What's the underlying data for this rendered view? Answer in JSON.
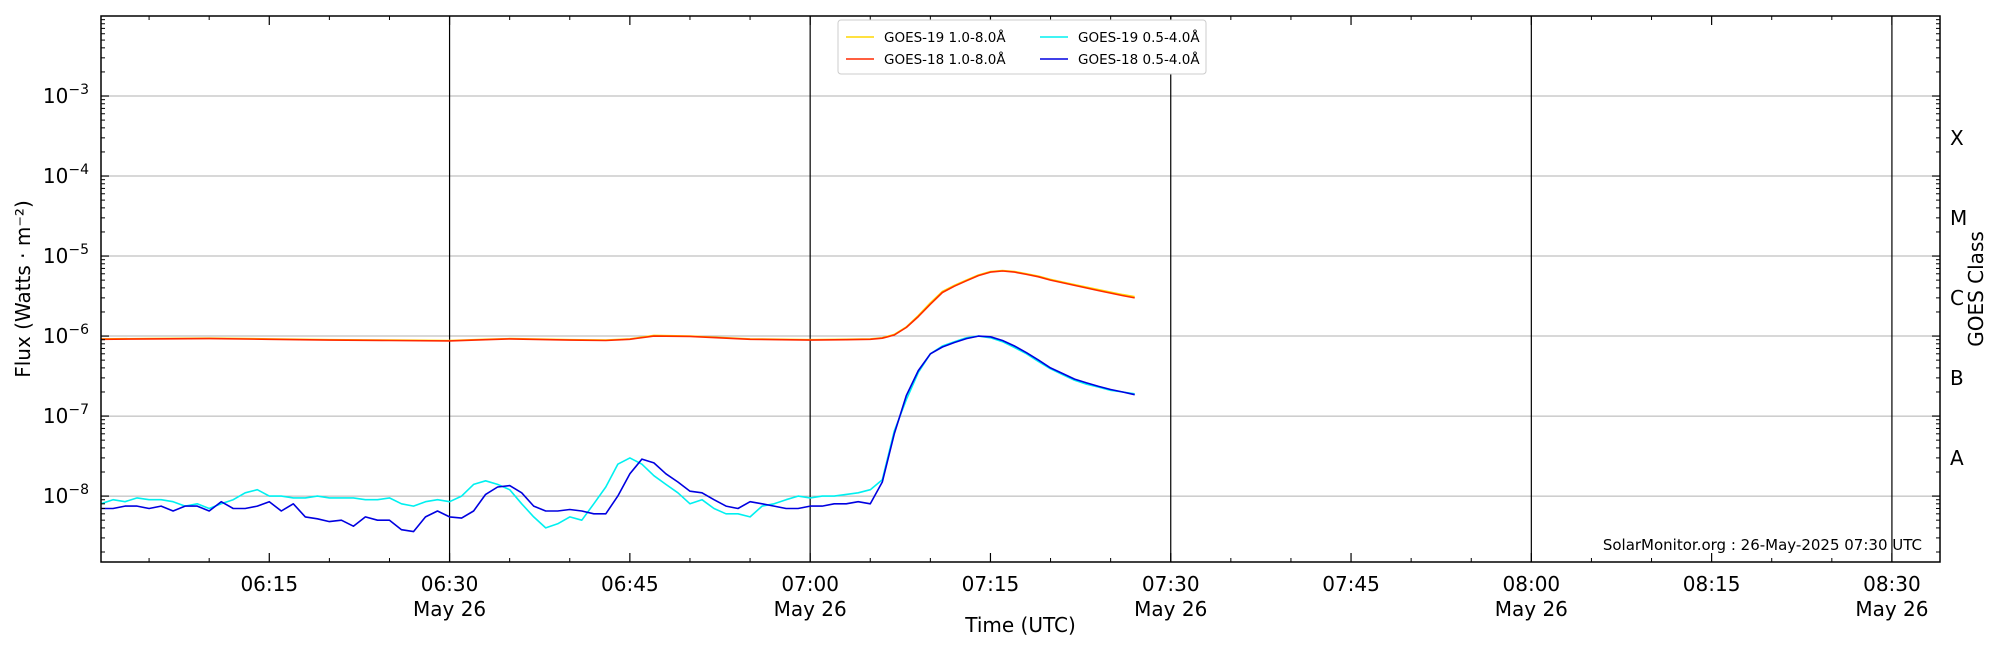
{
  "chart_data": {
    "type": "line",
    "title": "",
    "xlabel": "Time (UTC)",
    "ylabel": "Flux (Watts · m⁻²)",
    "y2label": "GOES Class",
    "yscale": "log",
    "ylim": [
      1.5e-09,
      0.01
    ],
    "xlim": [
      "2025-05-26 06:01",
      "2025-05-26 08:34"
    ],
    "grid": "horizontal at decades",
    "legend_position": "top-center",
    "watermark": "SolarMonitor.org : 26-May-2025 07:30 UTC",
    "x_ticks": [
      {
        "time": "06:15",
        "date": ""
      },
      {
        "time": "06:30",
        "date": "May 26"
      },
      {
        "time": "06:45",
        "date": ""
      },
      {
        "time": "07:00",
        "date": "May 26"
      },
      {
        "time": "07:15",
        "date": ""
      },
      {
        "time": "07:30",
        "date": "May 26"
      },
      {
        "time": "07:45",
        "date": ""
      },
      {
        "time": "08:00",
        "date": "May 26"
      },
      {
        "time": "08:15",
        "date": ""
      },
      {
        "time": "08:30",
        "date": "May 26"
      }
    ],
    "y_ticks": [
      {
        "value": 1e-08,
        "base": "10",
        "exp": "−8"
      },
      {
        "value": 1e-07,
        "base": "10",
        "exp": "−7"
      },
      {
        "value": 1e-06,
        "base": "10",
        "exp": "−6"
      },
      {
        "value": 1e-05,
        "base": "10",
        "exp": "−5"
      },
      {
        "value": 0.0001,
        "base": "10",
        "exp": "−4"
      },
      {
        "value": 0.001,
        "base": "10",
        "exp": "−3"
      }
    ],
    "goes_classes": [
      {
        "label": "A",
        "value": 3e-08
      },
      {
        "label": "B",
        "value": 3e-07
      },
      {
        "label": "C",
        "value": 3e-06
      },
      {
        "label": "M",
        "value": 3e-05
      },
      {
        "label": "X",
        "value": 0.0003
      }
    ],
    "vertical_lines": [
      "06:30",
      "07:00",
      "07:30",
      "08:00",
      "08:30"
    ],
    "series": [
      {
        "name": "GOES-19 1.0-8.0Å",
        "color": "#ffd700",
        "x": [
          "06:01",
          "06:05",
          "06:10",
          "06:15",
          "06:20",
          "06:25",
          "06:30",
          "06:33",
          "06:35",
          "06:40",
          "06:43",
          "06:45",
          "06:47",
          "06:50",
          "06:55",
          "07:00",
          "07:03",
          "07:05",
          "07:06",
          "07:07",
          "07:08",
          "07:09",
          "07:10",
          "07:11",
          "07:12",
          "07:13",
          "07:14",
          "07:15",
          "07:16",
          "07:17",
          "07:18",
          "07:19",
          "07:20",
          "07:22",
          "07:24",
          "07:26",
          "07:27"
        ],
        "values": [
          9.2e-07,
          9.3e-07,
          9.4e-07,
          9.2e-07,
          9e-07,
          8.9e-07,
          8.8e-07,
          9.1e-07,
          9.3e-07,
          9e-07,
          8.9e-07,
          9.2e-07,
          1.02e-06,
          1e-06,
          9.2e-07,
          9e-07,
          9.1e-07,
          9.2e-07,
          9.5e-07,
          1.05e-06,
          1.3e-06,
          1.8e-06,
          2.6e-06,
          3.6e-06,
          4.3e-06,
          5e-06,
          5.8e-06,
          6.4e-06,
          6.6e-06,
          6.4e-06,
          6e-06,
          5.6e-06,
          5.1e-06,
          4.4e-06,
          3.8e-06,
          3.3e-06,
          3.1e-06
        ]
      },
      {
        "name": "GOES-18 1.0-8.0Å",
        "color": "#ff2a00",
        "x": [
          "06:01",
          "06:05",
          "06:10",
          "06:15",
          "06:20",
          "06:25",
          "06:30",
          "06:33",
          "06:35",
          "06:40",
          "06:43",
          "06:45",
          "06:47",
          "06:50",
          "06:55",
          "07:00",
          "07:03",
          "07:05",
          "07:06",
          "07:07",
          "07:08",
          "07:09",
          "07:10",
          "07:11",
          "07:12",
          "07:13",
          "07:14",
          "07:15",
          "07:16",
          "07:17",
          "07:18",
          "07:19",
          "07:20",
          "07:22",
          "07:24",
          "07:26",
          "07:27"
        ],
        "values": [
          9.1e-07,
          9.2e-07,
          9.3e-07,
          9.1e-07,
          8.9e-07,
          8.8e-07,
          8.7e-07,
          9e-07,
          9.2e-07,
          8.9e-07,
          8.8e-07,
          9.1e-07,
          1e-06,
          9.9e-07,
          9.1e-07,
          8.9e-07,
          9e-07,
          9.1e-07,
          9.4e-07,
          1.03e-06,
          1.28e-06,
          1.75e-06,
          2.5e-06,
          3.5e-06,
          4.2e-06,
          4.9e-06,
          5.7e-06,
          6.3e-06,
          6.5e-06,
          6.3e-06,
          5.9e-06,
          5.5e-06,
          5e-06,
          4.3e-06,
          3.7e-06,
          3.2e-06,
          3e-06
        ]
      },
      {
        "name": "GOES-19 0.5-4.0Å",
        "color": "#00f0f0",
        "x": [
          "06:01",
          "06:02",
          "06:03",
          "06:04",
          "06:05",
          "06:06",
          "06:07",
          "06:08",
          "06:09",
          "06:10",
          "06:11",
          "06:12",
          "06:13",
          "06:14",
          "06:15",
          "06:16",
          "06:17",
          "06:18",
          "06:19",
          "06:20",
          "06:21",
          "06:22",
          "06:23",
          "06:24",
          "06:25",
          "06:26",
          "06:27",
          "06:28",
          "06:29",
          "06:30",
          "06:31",
          "06:32",
          "06:33",
          "06:34",
          "06:35",
          "06:36",
          "06:37",
          "06:38",
          "06:39",
          "06:40",
          "06:41",
          "06:42",
          "06:43",
          "06:44",
          "06:45",
          "06:46",
          "06:47",
          "06:48",
          "06:49",
          "06:50",
          "06:51",
          "06:52",
          "06:53",
          "06:54",
          "06:55",
          "06:56",
          "06:57",
          "06:58",
          "06:59",
          "07:00",
          "07:01",
          "07:02",
          "07:03",
          "07:04",
          "07:05",
          "07:06",
          "07:07",
          "07:08",
          "07:09",
          "07:10",
          "07:11",
          "07:12",
          "07:13",
          "07:14",
          "07:15",
          "07:16",
          "07:17",
          "07:18",
          "07:19",
          "07:20",
          "07:21",
          "07:22",
          "07:23",
          "07:24",
          "07:25",
          "07:26",
          "07:27"
        ],
        "values": [
          8e-09,
          9e-09,
          8.5e-09,
          9.5e-09,
          9e-09,
          9e-09,
          8.5e-09,
          7.5e-09,
          8e-09,
          7e-09,
          8e-09,
          9e-09,
          1.1e-08,
          1.2e-08,
          1e-08,
          1e-08,
          9.5e-09,
          9.5e-09,
          1e-08,
          9.5e-09,
          9.5e-09,
          9.5e-09,
          9e-09,
          9e-09,
          9.5e-09,
          8e-09,
          7.5e-09,
          8.5e-09,
          9e-09,
          8.5e-09,
          1e-08,
          1.4e-08,
          1.55e-08,
          1.4e-08,
          1.2e-08,
          8e-09,
          5.5e-09,
          4e-09,
          4.5e-09,
          5.5e-09,
          5e-09,
          8e-09,
          1.3e-08,
          2.5e-08,
          3e-08,
          2.5e-08,
          1.8e-08,
          1.4e-08,
          1.1e-08,
          8e-09,
          9e-09,
          7e-09,
          6e-09,
          6e-09,
          5.5e-09,
          7.5e-09,
          8e-09,
          9e-09,
          1e-08,
          9.5e-09,
          1e-08,
          1e-08,
          1.05e-08,
          1.1e-08,
          1.2e-08,
          1.6e-08,
          6.5e-08,
          1.6e-07,
          3.5e-07,
          6e-07,
          7.5e-07,
          8.5e-07,
          9.5e-07,
          1e-06,
          9.5e-07,
          8.5e-07,
          7.2e-07,
          6e-07,
          4.8e-07,
          3.9e-07,
          3.3e-07,
          2.8e-07,
          2.5e-07,
          2.3e-07,
          2.1e-07,
          2e-07,
          1.9e-07
        ]
      },
      {
        "name": "GOES-18 0.5-4.0Å",
        "color": "#0000e0",
        "x": [
          "06:01",
          "06:02",
          "06:03",
          "06:04",
          "06:05",
          "06:06",
          "06:07",
          "06:08",
          "06:09",
          "06:10",
          "06:11",
          "06:12",
          "06:13",
          "06:14",
          "06:15",
          "06:16",
          "06:17",
          "06:18",
          "06:19",
          "06:20",
          "06:21",
          "06:22",
          "06:23",
          "06:24",
          "06:25",
          "06:26",
          "06:27",
          "06:28",
          "06:29",
          "06:30",
          "06:31",
          "06:32",
          "06:33",
          "06:34",
          "06:35",
          "06:36",
          "06:37",
          "06:38",
          "06:39",
          "06:40",
          "06:41",
          "06:42",
          "06:43",
          "06:44",
          "06:45",
          "06:46",
          "06:47",
          "06:48",
          "06:49",
          "06:50",
          "06:51",
          "06:52",
          "06:53",
          "06:54",
          "06:55",
          "06:56",
          "06:57",
          "06:58",
          "06:59",
          "07:00",
          "07:01",
          "07:02",
          "07:03",
          "07:04",
          "07:05",
          "07:06",
          "07:07",
          "07:08",
          "07:09",
          "07:10",
          "07:11",
          "07:12",
          "07:13",
          "07:14",
          "07:15",
          "07:16",
          "07:17",
          "07:18",
          "07:19",
          "07:20",
          "07:21",
          "07:22",
          "07:23",
          "07:24",
          "07:25",
          "07:26",
          "07:27"
        ],
        "values": [
          7e-09,
          7e-09,
          7.5e-09,
          7.5e-09,
          7e-09,
          7.5e-09,
          6.5e-09,
          7.5e-09,
          7.5e-09,
          6.5e-09,
          8.5e-09,
          7e-09,
          7e-09,
          7.5e-09,
          8.5e-09,
          6.5e-09,
          8e-09,
          5.5e-09,
          5.2e-09,
          4.8e-09,
          5e-09,
          4.2e-09,
          5.5e-09,
          5e-09,
          5e-09,
          3.8e-09,
          3.6e-09,
          5.5e-09,
          6.5e-09,
          5.5e-09,
          5.3e-09,
          6.5e-09,
          1.05e-08,
          1.3e-08,
          1.35e-08,
          1.1e-08,
          7.5e-09,
          6.5e-09,
          6.5e-09,
          6.8e-09,
          6.5e-09,
          6e-09,
          6e-09,
          1e-08,
          1.9e-08,
          2.9e-08,
          2.6e-08,
          1.9e-08,
          1.5e-08,
          1.15e-08,
          1.1e-08,
          9e-09,
          7.5e-09,
          7e-09,
          8.5e-09,
          8e-09,
          7.5e-09,
          7e-09,
          7e-09,
          7.5e-09,
          7.5e-09,
          8e-09,
          8e-09,
          8.5e-09,
          8e-09,
          1.5e-08,
          6e-08,
          1.8e-07,
          3.7e-07,
          6e-07,
          7.3e-07,
          8.3e-07,
          9.3e-07,
          1e-06,
          9.8e-07,
          8.8e-07,
          7.5e-07,
          6.2e-07,
          5e-07,
          4e-07,
          3.4e-07,
          2.9e-07,
          2.6e-07,
          2.35e-07,
          2.15e-07,
          2e-07,
          1.85e-07
        ]
      }
    ]
  }
}
